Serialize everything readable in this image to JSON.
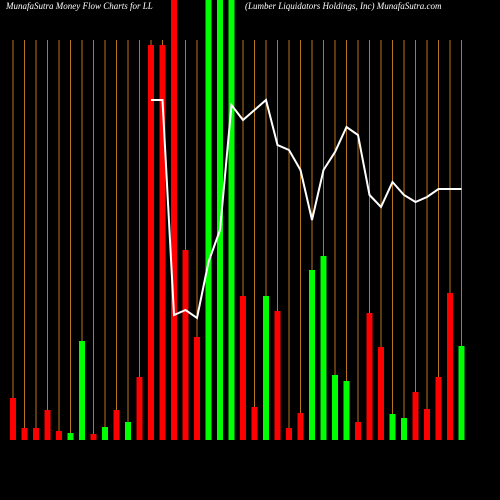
{
  "chart_data": {
    "type": "bar",
    "title": "MunafaSutra  Money Flow  Charts for LL",
    "subtitle": "(Lumber Liquidators Holdings, Inc) MunafaSutra.com",
    "values": [
      42,
      12,
      12,
      30,
      9,
      7,
      99,
      6,
      13,
      30,
      18,
      63,
      395,
      395,
      440,
      190,
      103,
      440,
      440,
      440,
      144,
      33,
      144,
      129,
      12,
      27,
      170,
      184,
      65,
      59,
      18,
      127,
      93,
      26,
      22,
      48,
      31,
      63,
      147,
      94
    ],
    "bar_colors": [
      "#ff0000",
      "#ff0000",
      "#ff0000",
      "#ff0000",
      "#ff0000",
      "#00ff00",
      "#00ff00",
      "#ff0000",
      "#00ff00",
      "#ff0000",
      "#00ff00",
      "#ff0000",
      "#ff0000",
      "#ff0000",
      "#ff0000",
      "#ff0000",
      "#ff0000",
      "#00ff00",
      "#00ff00",
      "#00ff00",
      "#ff0000",
      "#ff0000",
      "#00ff00",
      "#ff0000",
      "#ff0000",
      "#ff0000",
      "#00ff00",
      "#00ff00",
      "#00ff00",
      "#00ff00",
      "#ff0000",
      "#ff0000",
      "#ff0000",
      "#00ff00",
      "#00ff00",
      "#ff0000",
      "#ff0000",
      "#ff0000",
      "#ff0000",
      "#00ff00"
    ],
    "line_values": [
      null,
      null,
      null,
      null,
      null,
      null,
      null,
      null,
      null,
      null,
      null,
      null,
      340,
      340,
      125,
      130,
      122,
      178,
      210,
      335,
      320,
      330,
      340,
      295,
      290,
      270,
      220,
      270,
      288,
      313,
      305,
      245,
      233,
      258,
      245,
      238,
      243,
      251,
      251,
      251
    ],
    "line_color": "#ffffff",
    "grid_color": "#b8741a",
    "ylim": [
      0,
      440
    ]
  }
}
